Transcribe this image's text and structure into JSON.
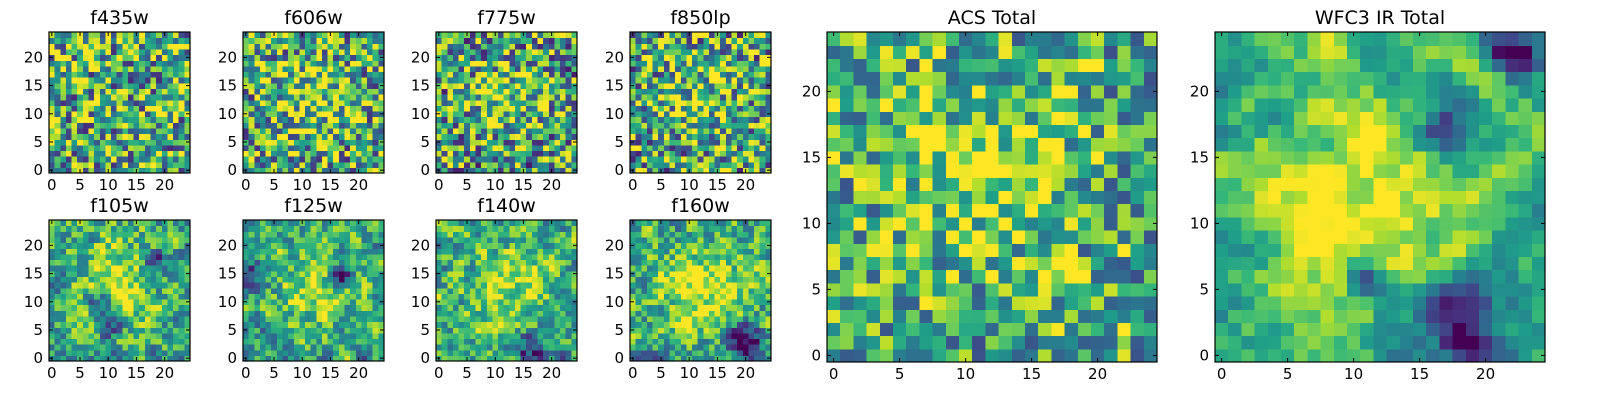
{
  "chart_data": [
    {
      "type": "heatmap",
      "title": "f435w",
      "grid_size": 25,
      "colormap": "viridis-like",
      "xticks": [
        "0",
        "5",
        "10",
        "15",
        "20"
      ],
      "yticks": [
        "0",
        "5",
        "10",
        "15",
        "20"
      ],
      "xlim": [
        -0.5,
        24.5
      ],
      "ylim": [
        -0.5,
        24.5
      ],
      "seed": 11,
      "smooth": 0,
      "blobs": [],
      "contrast": 1.0,
      "bias": 0.62
    },
    {
      "type": "heatmap",
      "title": "f606w",
      "grid_size": 25,
      "colormap": "viridis-like",
      "xticks": [
        "0",
        "5",
        "10",
        "15",
        "20"
      ],
      "yticks": [
        "0",
        "5",
        "10",
        "15",
        "20"
      ],
      "xlim": [
        -0.5,
        24.5
      ],
      "ylim": [
        -0.5,
        24.5
      ],
      "seed": 23,
      "smooth": 0,
      "blobs": [
        [
          12,
          13,
          0.25,
          5
        ]
      ],
      "contrast": 1.0,
      "bias": 0.6
    },
    {
      "type": "heatmap",
      "title": "f775w",
      "grid_size": 25,
      "colormap": "viridis-like",
      "xticks": [
        "0",
        "5",
        "10",
        "15",
        "20"
      ],
      "yticks": [
        "0",
        "5",
        "10",
        "15",
        "20"
      ],
      "xlim": [
        -0.5,
        24.5
      ],
      "ylim": [
        -0.5,
        24.5
      ],
      "seed": 37,
      "smooth": 0,
      "blobs": [
        [
          12,
          13,
          0.25,
          5
        ]
      ],
      "contrast": 1.0,
      "bias": 0.55
    },
    {
      "type": "heatmap",
      "title": "f850lp",
      "grid_size": 25,
      "colormap": "viridis-like",
      "xticks": [
        "0",
        "5",
        "10",
        "15",
        "20"
      ],
      "yticks": [
        "0",
        "5",
        "10",
        "15",
        "20"
      ],
      "xlim": [
        -0.5,
        24.5
      ],
      "ylim": [
        -0.5,
        24.5
      ],
      "seed": 41,
      "smooth": 0,
      "blobs": [
        [
          12,
          13,
          0.2,
          5
        ]
      ],
      "contrast": 1.0,
      "bias": 0.58
    },
    {
      "type": "heatmap",
      "title": "ACS Total",
      "grid_size": 25,
      "colormap": "viridis-like",
      "xticks": [
        "0",
        "5",
        "10",
        "15",
        "20"
      ],
      "yticks": [
        "0",
        "5",
        "10",
        "15",
        "20"
      ],
      "xlim": [
        -0.5,
        24.5
      ],
      "ylim": [
        -0.5,
        24.5
      ],
      "seed": 53,
      "smooth": 0,
      "blobs": [
        [
          12,
          14,
          0.25,
          5
        ]
      ],
      "contrast": 0.8,
      "bias": 0.62
    },
    {
      "type": "heatmap",
      "title": "f105w",
      "grid_size": 25,
      "colormap": "viridis-like",
      "xticks": [
        "0",
        "5",
        "10",
        "15",
        "20"
      ],
      "yticks": [
        "0",
        "5",
        "10",
        "15",
        "20"
      ],
      "xlim": [
        -0.5,
        24.5
      ],
      "ylim": [
        -0.5,
        24.5
      ],
      "seed": 67,
      "smooth": 1,
      "blobs": [
        [
          11,
          13,
          0.35,
          5
        ],
        [
          10,
          6,
          -0.6,
          1.5
        ],
        [
          8,
          10,
          -0.5,
          1.5
        ],
        [
          18,
          17,
          -0.5,
          1.5
        ]
      ],
      "contrast": 1.0,
      "bias": 0.6
    },
    {
      "type": "heatmap",
      "title": "f125w",
      "grid_size": 25,
      "colormap": "viridis-like",
      "xticks": [
        "0",
        "5",
        "10",
        "15",
        "20"
      ],
      "yticks": [
        "0",
        "5",
        "10",
        "15",
        "20"
      ],
      "xlim": [
        -0.5,
        24.5
      ],
      "ylim": [
        -0.5,
        24.5
      ],
      "seed": 79,
      "smooth": 1,
      "blobs": [
        [
          12,
          12,
          0.3,
          5
        ],
        [
          17,
          15,
          -0.5,
          1.5
        ],
        [
          2,
          15,
          -0.4,
          1.5
        ]
      ],
      "contrast": 1.0,
      "bias": 0.58
    },
    {
      "type": "heatmap",
      "title": "f140w",
      "grid_size": 25,
      "colormap": "viridis-like",
      "xticks": [
        "0",
        "5",
        "10",
        "15",
        "20"
      ],
      "yticks": [
        "0",
        "5",
        "10",
        "15",
        "20"
      ],
      "xlim": [
        -0.5,
        24.5
      ],
      "ylim": [
        -0.5,
        24.5
      ],
      "seed": 83,
      "smooth": 1,
      "blobs": [
        [
          13,
          12,
          0.35,
          5
        ],
        [
          16,
          2,
          -0.5,
          2
        ]
      ],
      "contrast": 1.0,
      "bias": 0.6
    },
    {
      "type": "heatmap",
      "title": "f160w",
      "grid_size": 25,
      "colormap": "viridis-like",
      "xticks": [
        "0",
        "5",
        "10",
        "15",
        "20"
      ],
      "yticks": [
        "0",
        "5",
        "10",
        "15",
        "20"
      ],
      "xlim": [
        -0.5,
        24.5
      ],
      "ylim": [
        -0.5,
        24.5
      ],
      "seed": 97,
      "smooth": 1,
      "blobs": [
        [
          12,
          13,
          0.35,
          5
        ],
        [
          20,
          3,
          -0.7,
          2
        ]
      ],
      "contrast": 1.0,
      "bias": 0.6
    },
    {
      "type": "heatmap",
      "title": "WFC3 IR Total",
      "grid_size": 25,
      "colormap": "viridis-like",
      "xticks": [
        "0",
        "5",
        "10",
        "15",
        "20"
      ],
      "yticks": [
        "0",
        "5",
        "10",
        "15",
        "20"
      ],
      "xlim": [
        -0.5,
        24.5
      ],
      "ylim": [
        -0.5,
        24.5
      ],
      "seed": 101,
      "smooth": 2,
      "blobs": [
        [
          12,
          12,
          0.4,
          6
        ],
        [
          18,
          3,
          -0.8,
          2.2
        ],
        [
          17,
          17,
          -0.7,
          1.5
        ],
        [
          22,
          23,
          -0.8,
          1.2
        ],
        [
          11,
          6,
          -0.5,
          1
        ]
      ],
      "contrast": 1.0,
      "bias": 0.62
    }
  ]
}
